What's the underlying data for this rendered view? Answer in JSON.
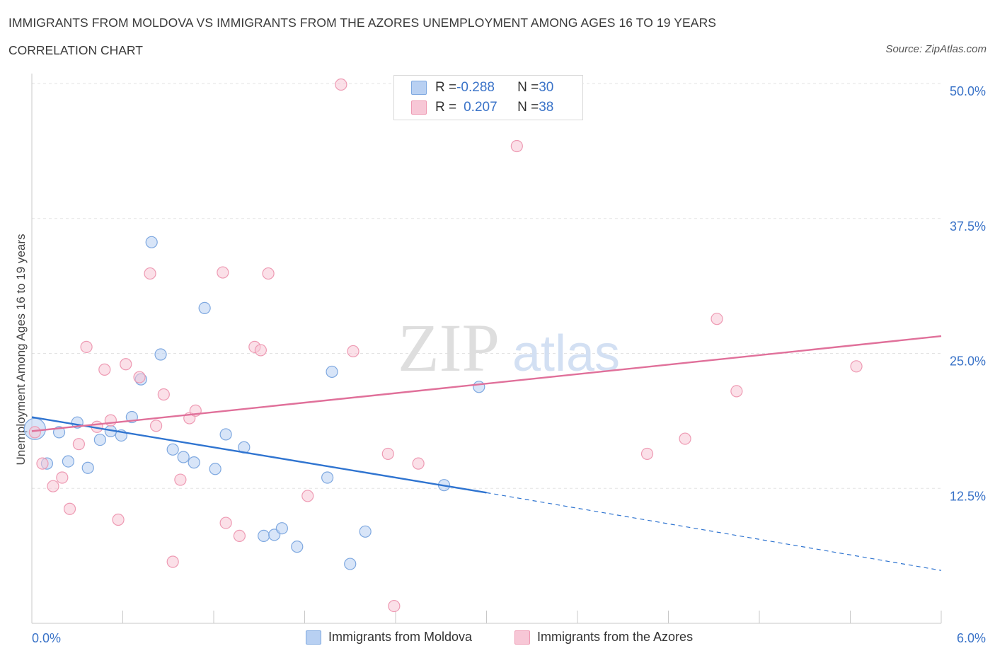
{
  "header": {
    "title": "IMMIGRANTS FROM MOLDOVA VS IMMIGRANTS FROM THE AZORES UNEMPLOYMENT AMONG AGES 16 TO 19 YEARS",
    "subtitle": "CORRELATION CHART",
    "source": "Source: ZipAtlas.com"
  },
  "watermark": {
    "part1": "ZIP",
    "part2": "atlas"
  },
  "legend": {
    "series1": {
      "r_label": "R = ",
      "r_value": "-0.288",
      "n_label": "N = ",
      "n_value": "30"
    },
    "series2": {
      "r_label": "R = ",
      "r_value": "0.207",
      "n_label": "N = ",
      "n_value": "38"
    }
  },
  "colors": {
    "moldova_fill": "#b8d0f2",
    "moldova_stroke": "#7ea8e0",
    "moldova_line": "#2f74d0",
    "azores_fill": "#f7c7d6",
    "azores_stroke": "#ee9ab3",
    "azores_line": "#e0709a",
    "grid": "#e3e3e3",
    "axis_text": "#3a73c8"
  },
  "chart_data": {
    "type": "scatter",
    "title": "IMMIGRANTS FROM MOLDOVA VS IMMIGRANTS FROM THE AZORES UNEMPLOYMENT AMONG AGES 16 TO 19 YEARS",
    "ylabel": "Unemployment Among Ages 16 to 19 years",
    "xlabel": "",
    "xlim": [
      0,
      6
    ],
    "ylim": [
      0,
      50
    ],
    "x_tick_labels": [
      "0.0%",
      "6.0%"
    ],
    "y_ticks": [
      12.5,
      25.0,
      37.5,
      50.0
    ],
    "y_tick_labels": [
      "12.5%",
      "25.0%",
      "37.5%",
      "50.0%"
    ],
    "grid": true,
    "legend_placement": "bottom",
    "series": [
      {
        "name": "Immigrants from Moldova",
        "r": -0.288,
        "n": 30,
        "trend": {
          "x0": 0.0,
          "y0": 19.1,
          "x1": 3.0,
          "y1": 12.1,
          "x_end": 6.0,
          "y_end": 4.9
        },
        "points": [
          {
            "x": 0.02,
            "y": 18.0,
            "big": true
          },
          {
            "x": 0.1,
            "y": 14.8
          },
          {
            "x": 0.18,
            "y": 17.7
          },
          {
            "x": 0.24,
            "y": 15.0
          },
          {
            "x": 0.3,
            "y": 18.6
          },
          {
            "x": 0.37,
            "y": 14.4
          },
          {
            "x": 0.45,
            "y": 17.0
          },
          {
            "x": 0.52,
            "y": 17.8
          },
          {
            "x": 0.59,
            "y": 17.4
          },
          {
            "x": 0.66,
            "y": 19.1
          },
          {
            "x": 0.72,
            "y": 22.6
          },
          {
            "x": 0.79,
            "y": 35.3
          },
          {
            "x": 0.85,
            "y": 24.9
          },
          {
            "x": 0.93,
            "y": 16.1
          },
          {
            "x": 1.0,
            "y": 15.4
          },
          {
            "x": 1.07,
            "y": 14.9
          },
          {
            "x": 1.14,
            "y": 29.2
          },
          {
            "x": 1.21,
            "y": 14.3
          },
          {
            "x": 1.28,
            "y": 17.5
          },
          {
            "x": 1.4,
            "y": 16.3
          },
          {
            "x": 1.53,
            "y": 8.1
          },
          {
            "x": 1.6,
            "y": 8.2
          },
          {
            "x": 1.65,
            "y": 8.8
          },
          {
            "x": 1.75,
            "y": 7.1
          },
          {
            "x": 1.95,
            "y": 13.5
          },
          {
            "x": 1.98,
            "y": 23.3
          },
          {
            "x": 2.1,
            "y": 5.5
          },
          {
            "x": 2.2,
            "y": 8.5
          },
          {
            "x": 2.72,
            "y": 12.8
          },
          {
            "x": 2.95,
            "y": 21.9
          }
        ]
      },
      {
        "name": "Immigrants from the Azores",
        "r": 0.207,
        "n": 38,
        "trend": {
          "x0": 0.0,
          "y0": 17.8,
          "x1": 6.0,
          "y1": 26.6
        },
        "points": [
          {
            "x": 0.02,
            "y": 17.7
          },
          {
            "x": 0.07,
            "y": 14.8
          },
          {
            "x": 0.14,
            "y": 12.7
          },
          {
            "x": 0.2,
            "y": 13.5
          },
          {
            "x": 0.25,
            "y": 10.6
          },
          {
            "x": 0.31,
            "y": 16.6
          },
          {
            "x": 0.36,
            "y": 25.6
          },
          {
            "x": 0.43,
            "y": 18.2
          },
          {
            "x": 0.48,
            "y": 23.5
          },
          {
            "x": 0.52,
            "y": 18.8
          },
          {
            "x": 0.57,
            "y": 9.6
          },
          {
            "x": 0.62,
            "y": 24.0
          },
          {
            "x": 0.71,
            "y": 22.8
          },
          {
            "x": 0.78,
            "y": 32.4
          },
          {
            "x": 0.82,
            "y": 18.3
          },
          {
            "x": 0.87,
            "y": 21.2
          },
          {
            "x": 0.93,
            "y": 5.7
          },
          {
            "x": 0.98,
            "y": 13.3
          },
          {
            "x": 1.04,
            "y": 19.0
          },
          {
            "x": 1.08,
            "y": 19.7
          },
          {
            "x": 1.26,
            "y": 32.5
          },
          {
            "x": 1.28,
            "y": 9.3
          },
          {
            "x": 1.37,
            "y": 8.1
          },
          {
            "x": 1.47,
            "y": 25.6
          },
          {
            "x": 1.51,
            "y": 25.3
          },
          {
            "x": 1.56,
            "y": 32.4
          },
          {
            "x": 1.82,
            "y": 11.8
          },
          {
            "x": 2.04,
            "y": 49.9
          },
          {
            "x": 2.12,
            "y": 25.2
          },
          {
            "x": 2.35,
            "y": 15.7
          },
          {
            "x": 2.39,
            "y": 1.6
          },
          {
            "x": 2.55,
            "y": 14.8
          },
          {
            "x": 3.2,
            "y": 44.2
          },
          {
            "x": 4.06,
            "y": 15.7
          },
          {
            "x": 4.31,
            "y": 17.1
          },
          {
            "x": 4.52,
            "y": 28.2
          },
          {
            "x": 4.65,
            "y": 21.5
          },
          {
            "x": 5.44,
            "y": 23.8
          }
        ]
      }
    ]
  },
  "bottom_legend": {
    "item1": "Immigrants from Moldova",
    "item2": "Immigrants from the Azores"
  }
}
